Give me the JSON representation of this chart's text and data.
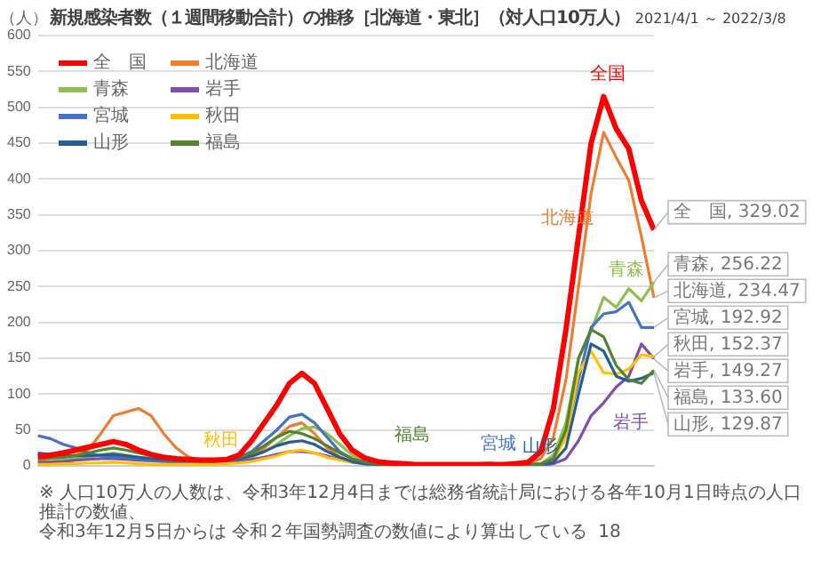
{
  "chart_data": {
    "type": "line",
    "title": "新規感染者数（１週間移動合計）の推移［北海道・東北］（対人口10万人）",
    "subtitle": "2021/4/1 ～ 2022/3/8",
    "ylabel": "（人）",
    "categories": [
      null,
      null,
      null,
      null,
      null,
      null,
      null,
      null,
      null,
      null,
      null,
      null,
      null,
      null,
      null,
      null,
      null,
      null,
      null,
      null,
      null,
      null,
      null,
      null,
      null,
      null,
      null,
      null,
      null,
      null,
      null,
      null,
      null,
      null,
      null,
      null,
      null,
      null,
      null,
      null,
      null,
      null,
      null,
      null,
      null,
      null,
      null,
      null,
      null,
      null
    ],
    "ylim": [
      0,
      600
    ],
    "yticks": [
      0,
      50,
      100,
      150,
      200,
      250,
      300,
      350,
      400,
      450,
      500,
      550,
      600
    ],
    "grid": "y",
    "legend": "top left",
    "tick_labels": "y",
    "marker": "none",
    "line_style": "solid",
    "series": [
      {
        "name": "全　国",
        "color": "#ff0000",
        "values": [
          13,
          15,
          18,
          22,
          26,
          30,
          34,
          30,
          22,
          16,
          12,
          10,
          9,
          8,
          8,
          9,
          15,
          35,
          60,
          85,
          115,
          129,
          115,
          80,
          45,
          22,
          11,
          6,
          4,
          3,
          2,
          2,
          2,
          2,
          2,
          2,
          2,
          2,
          3,
          5,
          20,
          80,
          190,
          320,
          450,
          515,
          470,
          442,
          370,
          329.02
        ],
        "value_labels": [
          null,
          null,
          null,
          null,
          null,
          null,
          null,
          null,
          null,
          null,
          null,
          null,
          null,
          null,
          null,
          null,
          null,
          null,
          null,
          null,
          null,
          null,
          null,
          null,
          null,
          null,
          null,
          null,
          null,
          null,
          null,
          null,
          null,
          null,
          null,
          null,
          null,
          null,
          null,
          null,
          null,
          null,
          null,
          null,
          null,
          null,
          null,
          null,
          null,
          "全　国, 329.02"
        ]
      },
      {
        "name": "北海道",
        "color": "#ed7d31",
        "values": [
          8,
          10,
          12,
          15,
          22,
          45,
          70,
          75,
          80,
          70,
          45,
          25,
          12,
          7,
          5,
          5,
          8,
          15,
          25,
          40,
          55,
          60,
          45,
          25,
          12,
          6,
          4,
          3,
          2,
          2,
          2,
          2,
          2,
          2,
          2,
          2,
          2,
          2,
          2,
          3,
          10,
          40,
          120,
          250,
          380,
          465,
          430,
          398,
          320,
          234.47
        ],
        "value_labels": [
          null,
          null,
          null,
          null,
          null,
          null,
          null,
          null,
          null,
          null,
          null,
          null,
          null,
          null,
          null,
          null,
          null,
          null,
          null,
          null,
          null,
          null,
          null,
          null,
          null,
          null,
          null,
          null,
          null,
          null,
          null,
          null,
          null,
          null,
          null,
          null,
          null,
          null,
          null,
          null,
          null,
          null,
          null,
          null,
          null,
          null,
          null,
          null,
          null,
          "北海道, 234.47"
        ]
      },
      {
        "name": "青森",
        "color": "#8fc04f",
        "values": [
          5,
          6,
          8,
          10,
          12,
          15,
          18,
          15,
          12,
          10,
          8,
          6,
          5,
          5,
          5,
          6,
          8,
          12,
          20,
          30,
          42,
          52,
          54,
          45,
          30,
          15,
          8,
          5,
          3,
          2,
          2,
          2,
          2,
          2,
          2,
          2,
          2,
          2,
          2,
          2,
          3,
          15,
          60,
          150,
          188,
          235,
          221,
          247,
          230,
          256.22
        ],
        "value_labels": [
          null,
          null,
          null,
          null,
          null,
          null,
          null,
          null,
          null,
          null,
          null,
          null,
          null,
          null,
          null,
          null,
          null,
          null,
          null,
          null,
          null,
          null,
          null,
          null,
          null,
          null,
          null,
          null,
          null,
          null,
          null,
          null,
          null,
          null,
          null,
          null,
          null,
          null,
          null,
          null,
          null,
          null,
          null,
          null,
          null,
          null,
          null,
          null,
          null,
          "青森, 256.22"
        ]
      },
      {
        "name": "岩手",
        "color": "#7f4fb0",
        "values": [
          5,
          5,
          6,
          8,
          9,
          10,
          10,
          9,
          8,
          7,
          6,
          5,
          5,
          5,
          5,
          6,
          7,
          9,
          12,
          16,
          20,
          20,
          18,
          14,
          9,
          5,
          3,
          2,
          1,
          1,
          1,
          1,
          1,
          1,
          1,
          1,
          1,
          1,
          1,
          1,
          1,
          3,
          10,
          35,
          70,
          88,
          110,
          125,
          170,
          149.27
        ],
        "value_labels": [
          null,
          null,
          null,
          null,
          null,
          null,
          null,
          null,
          null,
          null,
          null,
          null,
          null,
          null,
          null,
          null,
          null,
          null,
          null,
          null,
          null,
          null,
          null,
          null,
          null,
          null,
          null,
          null,
          null,
          null,
          null,
          null,
          null,
          null,
          null,
          null,
          null,
          null,
          null,
          null,
          null,
          null,
          null,
          null,
          null,
          null,
          null,
          null,
          null,
          "岩手, 149.27"
        ]
      },
      {
        "name": "宮城",
        "color": "#4472c4",
        "values": [
          42,
          38,
          30,
          25,
          18,
          14,
          12,
          12,
          10,
          8,
          7,
          6,
          6,
          6,
          6,
          8,
          12,
          20,
          35,
          50,
          68,
          72,
          60,
          40,
          20,
          10,
          5,
          3,
          2,
          2,
          2,
          2,
          2,
          2,
          2,
          3,
          4,
          2,
          2,
          2,
          3,
          10,
          45,
          120,
          193,
          212,
          215,
          228,
          193,
          192.92
        ],
        "value_labels": [
          null,
          null,
          null,
          null,
          null,
          null,
          null,
          null,
          null,
          null,
          null,
          null,
          null,
          null,
          null,
          null,
          null,
          null,
          null,
          null,
          null,
          null,
          null,
          null,
          null,
          null,
          null,
          null,
          null,
          null,
          null,
          null,
          null,
          null,
          null,
          null,
          null,
          null,
          null,
          null,
          null,
          null,
          null,
          null,
          null,
          null,
          null,
          null,
          null,
          "宮城, 192.92"
        ]
      },
      {
        "name": "秋田",
        "color": "#ffc000",
        "values": [
          2,
          2,
          3,
          3,
          4,
          4,
          5,
          4,
          3,
          2,
          2,
          2,
          2,
          2,
          2,
          3,
          4,
          6,
          10,
          14,
          20,
          22,
          18,
          12,
          8,
          5,
          null,
          null,
          null,
          null,
          null,
          null,
          null,
          null,
          null,
          null,
          null,
          null,
          null,
          null,
          2,
          8,
          40,
          130,
          160,
          130,
          128,
          135,
          155,
          152.37
        ],
        "value_labels": [
          null,
          null,
          null,
          null,
          null,
          null,
          null,
          null,
          null,
          null,
          null,
          null,
          null,
          null,
          null,
          null,
          null,
          null,
          null,
          null,
          null,
          null,
          null,
          null,
          null,
          null,
          null,
          null,
          null,
          null,
          null,
          null,
          null,
          null,
          null,
          null,
          null,
          null,
          null,
          null,
          null,
          null,
          null,
          null,
          null,
          null,
          null,
          null,
          null,
          "秋田, 152.37"
        ]
      },
      {
        "name": "山形",
        "color": "#255e91",
        "values": [
          18,
          16,
          15,
          14,
          14,
          15,
          16,
          14,
          12,
          10,
          9,
          8,
          8,
          7,
          7,
          8,
          10,
          14,
          20,
          28,
          33,
          35,
          30,
          20,
          12,
          6,
          3,
          2,
          1,
          1,
          1,
          1,
          1,
          1,
          1,
          1,
          1,
          1,
          1,
          1,
          2,
          5,
          25,
          100,
          170,
          160,
          125,
          118,
          122,
          129.87
        ],
        "value_labels": [
          null,
          null,
          null,
          null,
          null,
          null,
          null,
          null,
          null,
          null,
          null,
          null,
          null,
          null,
          null,
          null,
          null,
          null,
          null,
          null,
          null,
          null,
          null,
          null,
          null,
          null,
          null,
          null,
          null,
          null,
          null,
          null,
          null,
          null,
          null,
          null,
          null,
          null,
          null,
          null,
          null,
          null,
          null,
          null,
          null,
          null,
          null,
          null,
          null,
          "山形, 129.87"
        ]
      },
      {
        "name": "福島",
        "color": "#548235",
        "values": [
          10,
          11,
          12,
          14,
          18,
          22,
          25,
          22,
          18,
          14,
          12,
          10,
          9,
          8,
          8,
          9,
          12,
          18,
          28,
          40,
          48,
          45,
          38,
          28,
          18,
          10,
          5,
          3,
          2,
          2,
          2,
          2,
          2,
          2,
          2,
          2,
          2,
          2,
          2,
          2,
          2,
          10,
          50,
          150,
          190,
          180,
          140,
          120,
          115,
          133.6
        ],
        "value_labels": [
          null,
          null,
          null,
          null,
          null,
          null,
          null,
          null,
          null,
          null,
          null,
          null,
          null,
          null,
          null,
          null,
          null,
          null,
          null,
          null,
          null,
          null,
          null,
          null,
          null,
          null,
          null,
          null,
          null,
          null,
          null,
          null,
          null,
          null,
          null,
          null,
          null,
          null,
          null,
          null,
          null,
          null,
          null,
          null,
          null,
          null,
          null,
          null,
          null,
          "福島, 133.60"
        ]
      }
    ],
    "annotations": [
      "全国",
      "北海道",
      "青森",
      "岩手",
      "秋田",
      "福島",
      "宮城",
      "山形",
      "※ 人口10万人の人数は、令和3年12月4日までは総務省統計局における各年10月1日時点の人口推計の数値、",
      "令和3年12月5日からは 令和２年国勢調査の数値により算出している",
      "18"
    ]
  }
}
